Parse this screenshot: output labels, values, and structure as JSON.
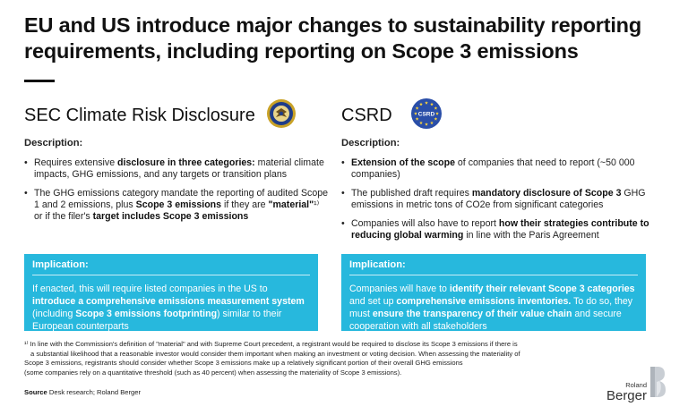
{
  "title": "EU and US introduce major changes to sustainability reporting requirements, including reporting on Scope 3 emissions",
  "left": {
    "heading": "SEC Climate Risk Disclosure",
    "logo_icon": "sec-seal-icon",
    "description_label": "Description:",
    "bullets": [
      {
        "parts": [
          {
            "t": "Requires extensive ",
            "b": false
          },
          {
            "t": "disclosure in three categories:",
            "b": true
          },
          {
            "t": " material climate impacts, GHG emissions, and any targets or transition plans",
            "b": false
          }
        ]
      },
      {
        "parts": [
          {
            "t": "The GHG emissions category mandate the reporting of audited Scope 1 and 2 emissions, plus ",
            "b": false
          },
          {
            "t": "Scope 3 emissions",
            "b": true
          },
          {
            "t": " if they are ",
            "b": false
          },
          {
            "t": "\"material\"",
            "b": true
          },
          {
            "t": "¹⁾",
            "b": false
          },
          {
            "t": " or if the filer's ",
            "b": false
          },
          {
            "t": "target includes Scope 3 emissions",
            "b": true
          }
        ]
      }
    ],
    "implication_label": "Implication:",
    "implication_parts": [
      {
        "t": "If enacted, this will require listed companies in the US to ",
        "b": false
      },
      {
        "t": "introduce a comprehensive emissions measurement system",
        "b": true
      },
      {
        "t": " (including ",
        "b": false
      },
      {
        "t": "Scope 3 emissions footprinting",
        "b": true
      },
      {
        "t": ") similar to their European counterparts",
        "b": false
      }
    ]
  },
  "right": {
    "heading": "CSRD",
    "logo_text": "CSRD",
    "logo_icon": "eu-stars-icon",
    "description_label": "Description:",
    "bullets": [
      {
        "parts": [
          {
            "t": "Extension of the scope",
            "b": true
          },
          {
            "t": " of companies that need to report (~50 000 companies)",
            "b": false
          }
        ]
      },
      {
        "parts": [
          {
            "t": "The published draft requires ",
            "b": false
          },
          {
            "t": "mandatory disclosure of Scope 3",
            "b": true
          },
          {
            "t": " GHG emissions in metric tons of CO2e from significant categories",
            "b": false
          }
        ]
      },
      {
        "parts": [
          {
            "t": "Companies will also have to report ",
            "b": false
          },
          {
            "t": "how their strategies contribute to reducing global warming",
            "b": true
          },
          {
            "t": " in line with the Paris Agreement",
            "b": false
          }
        ]
      }
    ],
    "implication_label": "Implication:",
    "implication_parts": [
      {
        "t": "Companies will have to ",
        "b": false
      },
      {
        "t": "identify their relevant Scope 3 categories",
        "b": true
      },
      {
        "t": " and set up ",
        "b": false
      },
      {
        "t": "comprehensive emissions inventories.",
        "b": true
      },
      {
        "t": " To do so, they must ",
        "b": false
      },
      {
        "t": "ensure the transparency of their value chain",
        "b": true
      },
      {
        "t": " and secure cooperation with all stakeholders",
        "b": false
      }
    ]
  },
  "footnote_lines": [
    "¹⁾ In line with the Commission's definition of \"material\" and with Supreme Court precedent, a registrant would be required to disclose its Scope 3 emissions if there is",
    "a substantial likelihood that a reasonable investor would consider them important when making an investment or voting decision. When assessing the materiality of",
    "Scope 3 emissions, registrants should consider whether Scope 3 emissions make up a relatively significant portion of their overall GHG emissions",
    "(some companies rely on a quantitative threshold (such as 40 percent) when assessing the materiality of Scope 3 emissions)."
  ],
  "source_label": "Source",
  "source_text": " Desk research; Roland Berger",
  "brand": {
    "small": "Roland",
    "big": "Berger",
    "icon": "roland-berger-b-icon"
  },
  "colors": {
    "accent": "#27b8dd",
    "eu_blue": "#2a4ea8",
    "star_yellow": "#f4d03f",
    "seal_gold": "#c9a227",
    "seal_blue": "#1f3c88"
  }
}
